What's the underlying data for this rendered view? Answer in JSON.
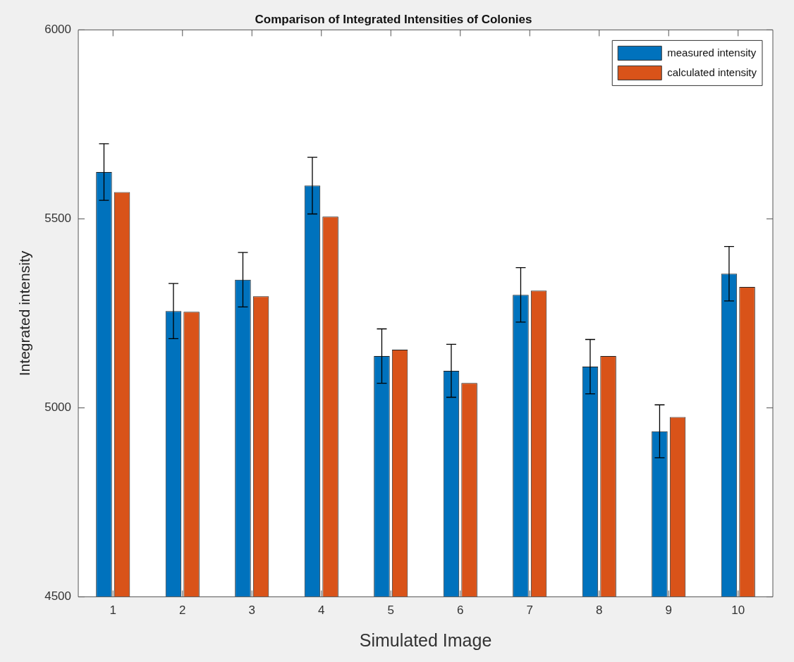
{
  "chart_data": {
    "type": "bar",
    "title": "Comparison of Integrated Intensities of Colonies",
    "xlabel": "Simulated Image",
    "ylabel": "Integrated intensity",
    "categories": [
      "1",
      "2",
      "3",
      "4",
      "5",
      "6",
      "7",
      "8",
      "9",
      "10"
    ],
    "series": [
      {
        "name": "measured intensity",
        "color": "#0072bd",
        "values": [
          5624,
          5256,
          5339,
          5588,
          5137,
          5098,
          5299,
          5109,
          4938,
          5355
        ],
        "errors": [
          75,
          73,
          72,
          75,
          72,
          70,
          72,
          72,
          70,
          72
        ]
      },
      {
        "name": "calculated intensity",
        "color": "#d95319",
        "values": [
          5571,
          5254,
          5295,
          5506,
          5154,
          5066,
          5310,
          5137,
          4976,
          5320
        ]
      }
    ],
    "ylim": [
      4500,
      6000
    ],
    "yticks": [
      4500,
      5000,
      5500,
      6000
    ],
    "grid": false,
    "legend": "top right"
  }
}
